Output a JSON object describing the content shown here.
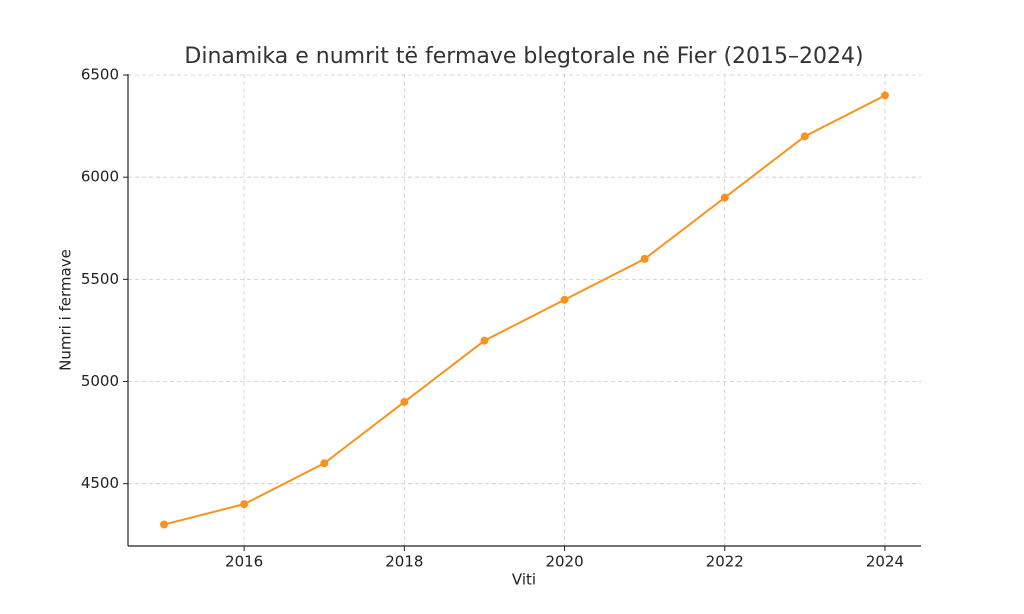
{
  "chart_data": {
    "type": "line",
    "title": "Dinamika e numrit të fermave blegtorale në Fier (2015–2024)",
    "x_label": "Viti",
    "y_label": "Numri i fermave",
    "x": [
      2015,
      2016,
      2017,
      2018,
      2019,
      2020,
      2021,
      2022,
      2023,
      2024
    ],
    "series": [
      {
        "name": "Numri i fermave",
        "color": "#f7931e",
        "values": [
          4300,
          4400,
          4600,
          4900,
          5200,
          5400,
          5600,
          5900,
          6200,
          6400
        ]
      }
    ],
    "xlim": [
      2014.55,
      2024.45
    ],
    "xticks": [
      2016,
      2018,
      2020,
      2022,
      2024
    ],
    "ylim": [
      4195,
      6505
    ],
    "yticks": [
      4500,
      5000,
      5500,
      6000,
      6500
    ],
    "grid": true
  }
}
